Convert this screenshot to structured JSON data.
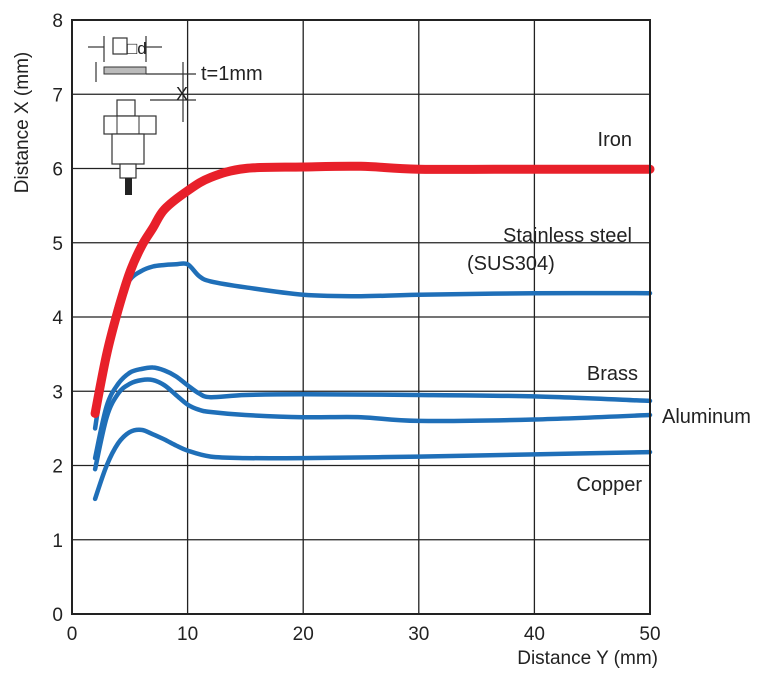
{
  "chart_data": {
    "type": "line",
    "title": "",
    "xlabel": "Distance Y (mm)",
    "ylabel": "Distance X (mm)",
    "xlim": [
      0,
      50
    ],
    "ylim": [
      0,
      8
    ],
    "x_ticks": [
      0,
      10,
      20,
      30,
      40,
      50
    ],
    "y_ticks": [
      0,
      1,
      2,
      3,
      4,
      5,
      6,
      7,
      8
    ],
    "grid": true,
    "inset_label": "t=1mm",
    "inset_marks": [
      "□d",
      "X"
    ],
    "series": [
      {
        "name": "Iron",
        "color": "#e8202a",
        "x": [
          2,
          3,
          4,
          5,
          6,
          7,
          8,
          10,
          12,
          15,
          20,
          25,
          30,
          40,
          50
        ],
        "y": [
          2.7,
          3.5,
          4.1,
          4.6,
          4.95,
          5.2,
          5.45,
          5.7,
          5.88,
          6.0,
          6.02,
          6.03,
          5.99,
          5.99,
          5.99
        ]
      },
      {
        "name": "Stainless steel",
        "name_line2": "(SUS304)",
        "color": "#1f6fb8",
        "x": [
          2,
          3,
          4,
          5,
          6,
          7,
          8,
          9,
          10,
          11,
          12,
          15,
          20,
          25,
          30,
          40,
          50
        ],
        "y": [
          2.5,
          3.5,
          4.2,
          4.5,
          4.62,
          4.68,
          4.7,
          4.71,
          4.71,
          4.55,
          4.48,
          4.4,
          4.3,
          4.28,
          4.3,
          4.32,
          4.32
        ]
      },
      {
        "name": "Brass",
        "color": "#1f6fb8",
        "x": [
          2,
          3,
          4,
          5,
          6,
          7,
          8,
          9,
          10,
          11,
          12,
          15,
          20,
          30,
          40,
          50
        ],
        "y": [
          2.1,
          2.8,
          3.1,
          3.25,
          3.3,
          3.32,
          3.28,
          3.2,
          3.08,
          2.97,
          2.92,
          2.95,
          2.96,
          2.95,
          2.93,
          2.87
        ]
      },
      {
        "name": "Aluminum",
        "color": "#1f6fb8",
        "x": [
          2,
          3,
          4,
          5,
          6,
          7,
          8,
          9,
          10,
          11,
          12,
          15,
          20,
          25,
          30,
          40,
          50
        ],
        "y": [
          1.95,
          2.65,
          2.97,
          3.1,
          3.15,
          3.15,
          3.08,
          2.95,
          2.82,
          2.75,
          2.72,
          2.68,
          2.65,
          2.65,
          2.6,
          2.62,
          2.68
        ]
      },
      {
        "name": "Copper",
        "color": "#1f6fb8",
        "x": [
          2,
          3,
          4,
          5,
          6,
          7,
          8,
          9,
          10,
          12,
          15,
          20,
          30,
          40,
          50
        ],
        "y": [
          1.55,
          2.0,
          2.3,
          2.45,
          2.48,
          2.42,
          2.35,
          2.27,
          2.2,
          2.12,
          2.1,
          2.1,
          2.12,
          2.15,
          2.18
        ]
      }
    ]
  }
}
